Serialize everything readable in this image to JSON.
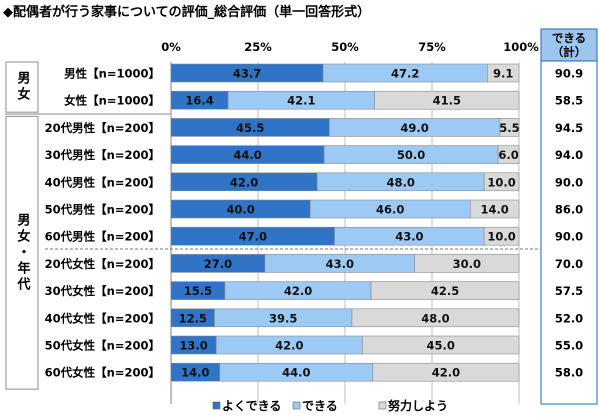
{
  "chart_data": {
    "type": "bar",
    "stacked": true,
    "orientation": "horizontal",
    "title": "◆配偶者が行う家事についての評価_総合評価（単一回答形式）",
    "xlim": [
      0,
      100
    ],
    "xticks": [
      "0%",
      "25%",
      "50%",
      "75%",
      "100%"
    ],
    "grid": true,
    "legend_position": "bottom",
    "colors": {
      "よくできる": "#2f74c6",
      "できる": "#9ccaf4",
      "努力しよう": "#d9d9d9",
      "box_border": "#3f7fc8",
      "box_header": "#9dc6ee"
    },
    "groups": [
      {
        "label": "男女",
        "rows": [
          0,
          1
        ]
      },
      {
        "label": "男女・年代",
        "rows": [
          2,
          3,
          4,
          5,
          6,
          7,
          8,
          9,
          10,
          11
        ]
      }
    ],
    "categories": [
      "男性【n=1000】",
      "女性【n=1000】",
      "20代男性【n=200】",
      "30代男性【n=200】",
      "40代男性【n=200】",
      "50代男性【n=200】",
      "60代男性【n=200】",
      "20代女性【n=200】",
      "30代女性【n=200】",
      "40代女性【n=200】",
      "50代女性【n=200】",
      "60代女性【n=200】"
    ],
    "series": [
      {
        "name": "よくできる",
        "values": [
          43.7,
          16.4,
          45.5,
          44.0,
          42.0,
          40.0,
          47.0,
          27.0,
          15.5,
          12.5,
          13.0,
          14.0
        ]
      },
      {
        "name": "できる",
        "values": [
          47.2,
          42.1,
          49.0,
          50.0,
          48.0,
          46.0,
          43.0,
          43.0,
          42.0,
          39.5,
          42.0,
          44.0
        ]
      },
      {
        "name": "努力しよう",
        "values": [
          9.1,
          41.5,
          5.5,
          6.0,
          10.0,
          14.0,
          10.0,
          30.0,
          42.5,
          48.0,
          45.0,
          42.0
        ]
      }
    ],
    "total_column": {
      "header": "できる（計）",
      "header_line1": "できる",
      "header_line2": "（計）",
      "values": [
        "90.9",
        "58.5",
        "94.5",
        "94.0",
        "90.0",
        "86.0",
        "90.0",
        "70.0",
        "57.5",
        "52.0",
        "55.0",
        "58.0"
      ]
    }
  }
}
